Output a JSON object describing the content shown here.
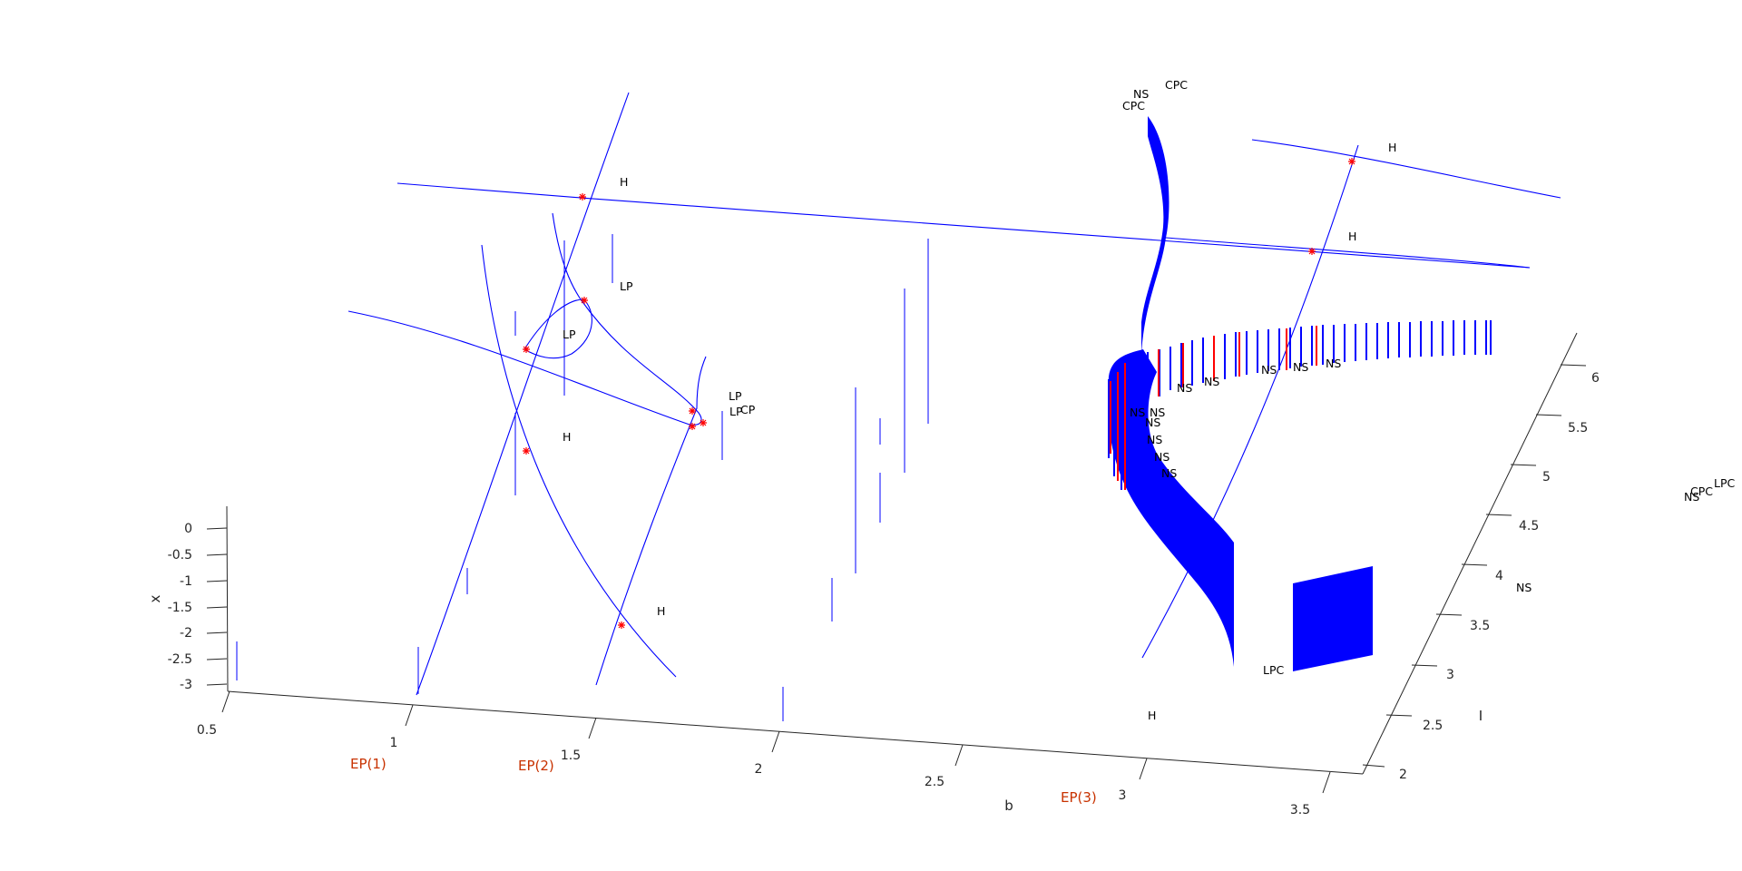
{
  "chart_data": {
    "type": "line",
    "projection": "3d",
    "grid": false,
    "colors": {
      "curve": "#0000ff",
      "special_point": "#ff0000",
      "ep_label": "#c83200",
      "axis": "#262626"
    },
    "axes": {
      "x": {
        "label": "b",
        "ticks": [
          "0.5",
          "1",
          "1.5",
          "2",
          "2.5",
          "3",
          "3.5"
        ],
        "range": [
          0.5,
          3.5
        ]
      },
      "y": {
        "label": "I",
        "ticks": [
          "2",
          "2.5",
          "3",
          "3.5",
          "4",
          "4.5",
          "5",
          "5.5",
          "6"
        ],
        "range": [
          2,
          6
        ]
      },
      "z": {
        "label": "x",
        "ticks": [
          "0",
          "-0.5",
          "-1",
          "-1.5",
          "-2",
          "-2.5",
          "-3"
        ],
        "range": [
          -3,
          0
        ]
      }
    },
    "curve_labels": [
      "EP(1)",
      "EP(2)",
      "EP(3)"
    ],
    "bifurcation_labels": [
      "H",
      "H",
      "H",
      "H",
      "H",
      "H",
      "LP",
      "LP",
      "LP",
      "LP",
      "CP",
      "NS",
      "NS",
      "NS",
      "NS",
      "NS",
      "NS",
      "NS",
      "NS",
      "NS",
      "NS",
      "NS",
      "NS",
      "CPC",
      "CPC",
      "LPC",
      "LPC",
      "CPC",
      "NS",
      "NS"
    ],
    "series_kinds": [
      "equilibrium curves",
      "limit cycle families"
    ]
  }
}
